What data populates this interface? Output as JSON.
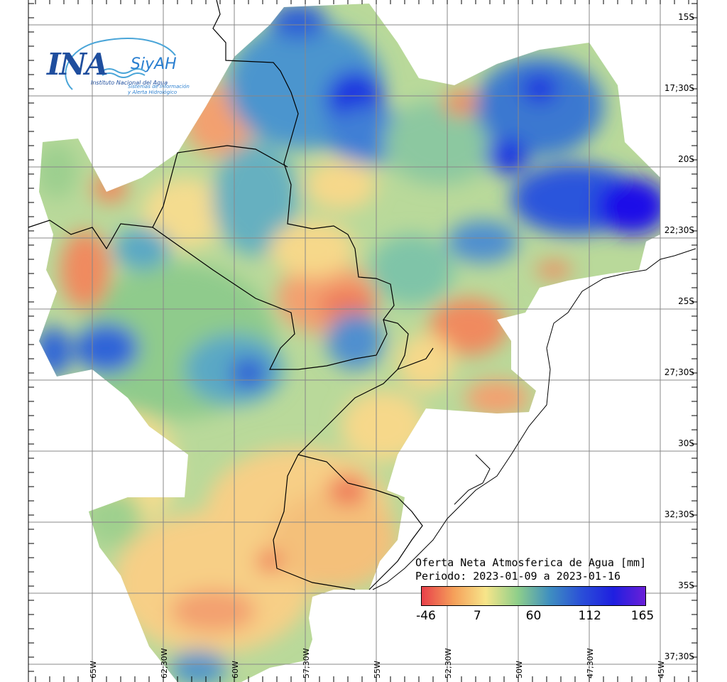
{
  "logo": {
    "ina": "INA",
    "siyah": "SiyAH",
    "institution": "Instituto Nacional del Agua",
    "system_line1": "Sistemas de Información",
    "system_line2": "y Alerta Hidrológico"
  },
  "legend": {
    "title": "Oferta Neta Atmosferica de Agua [mm]",
    "period": "Periodo: 2023-01-09 a 2023-01-16",
    "ticks": [
      "-46",
      "7",
      "60",
      "112",
      "165"
    ],
    "colors": [
      "#e8404a",
      "#f5a05a",
      "#f7e58a",
      "#8fcf8a",
      "#3f8fc0",
      "#2a4fd8",
      "#1f1fe0",
      "#6a1fd8"
    ]
  },
  "axes": {
    "lat_labels": [
      "15S",
      "17;30S",
      "20S",
      "22;30S",
      "25S",
      "27;30S",
      "30S",
      "32;30S",
      "35S",
      "37;30S"
    ],
    "lon_labels": [
      "65W",
      "62;30W",
      "60W",
      "57;30W",
      "55W",
      "52;30W",
      "50W",
      "47;30W",
      "45W"
    ]
  },
  "colors": {
    "grid": "#888888",
    "border": "#000000",
    "water_high": "#1f2fe0",
    "water_low": "#e8404a"
  }
}
